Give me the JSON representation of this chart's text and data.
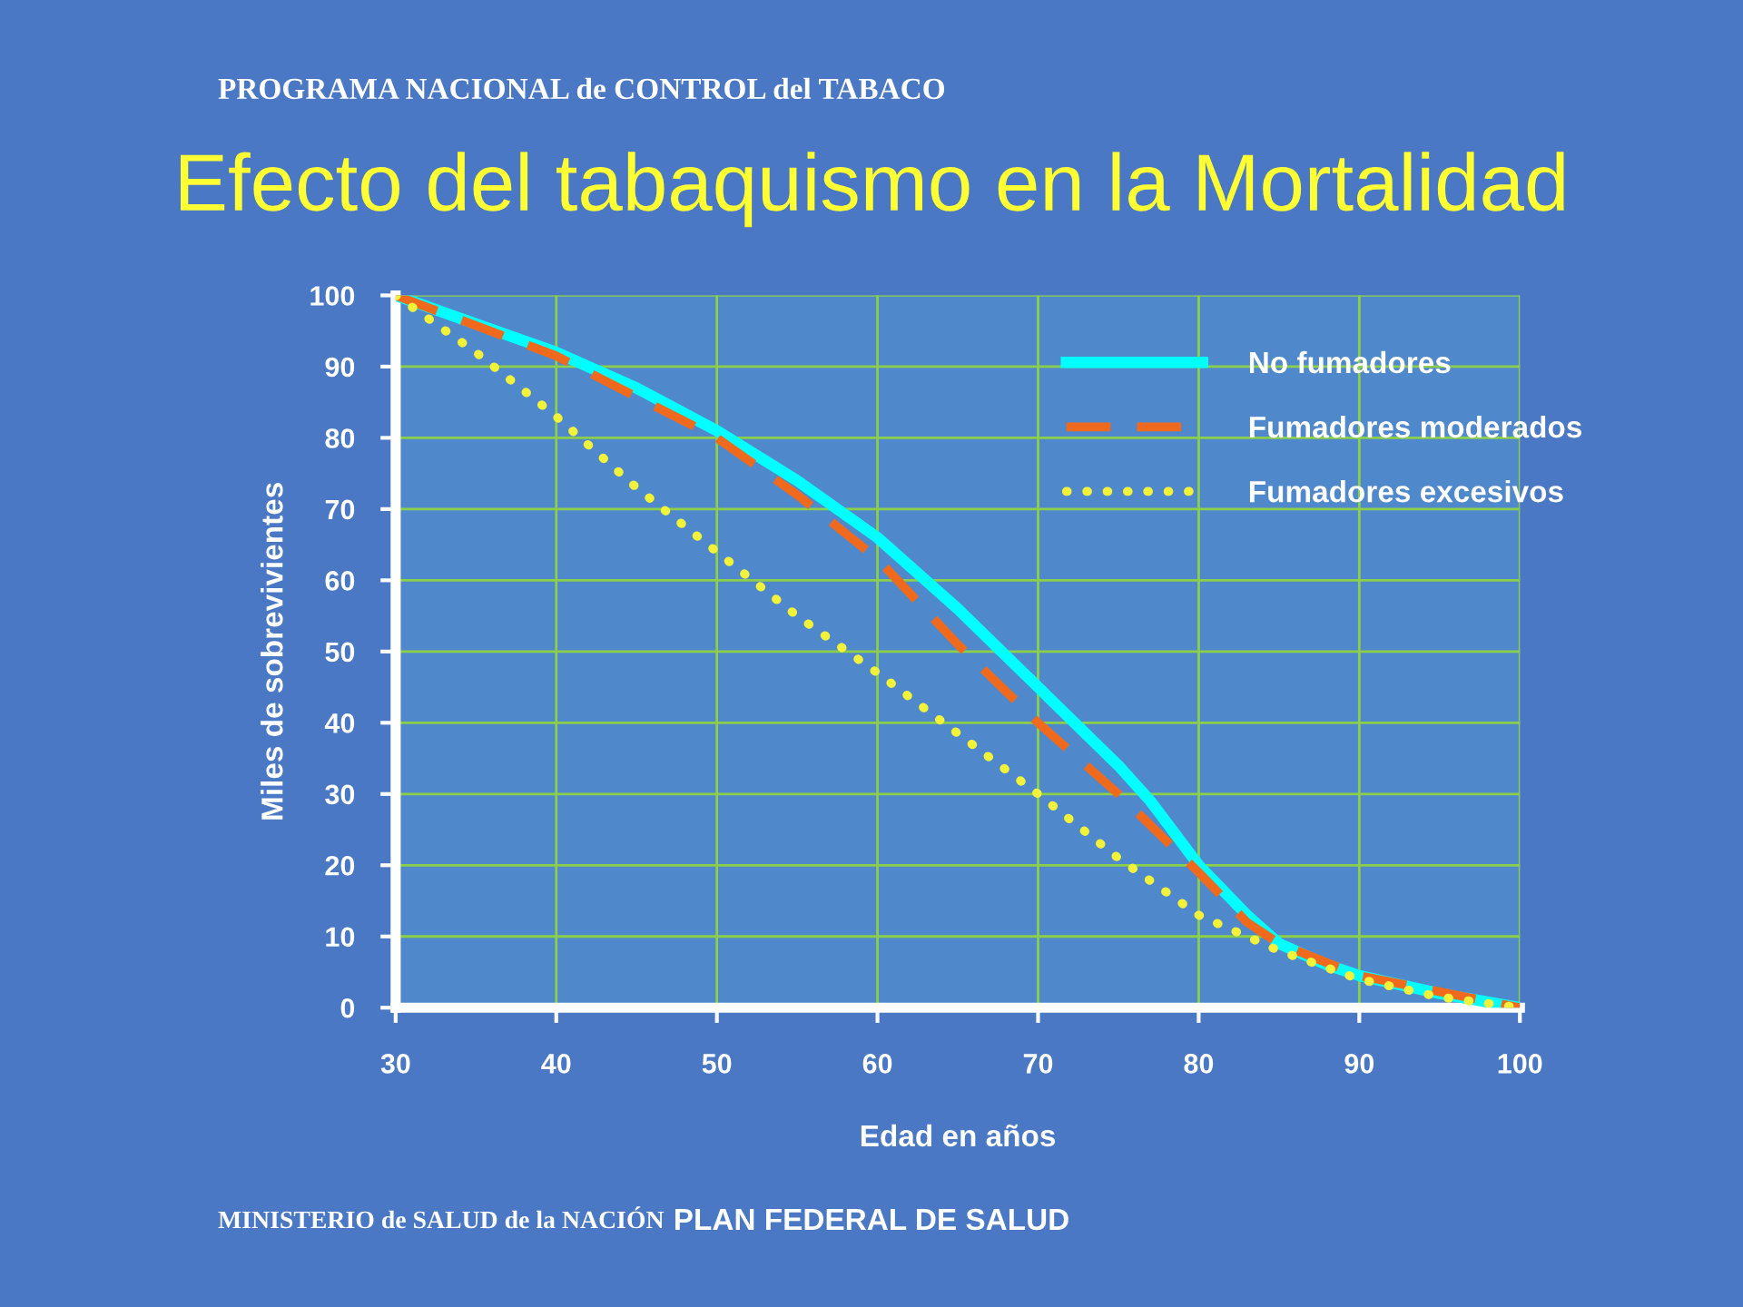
{
  "chart_data": {
    "type": "line",
    "title": "Efecto del tabaquismo en la Mortalidad",
    "xlabel": "Edad en años",
    "ylabel": "Miles de sobrevivientes",
    "annotations": [
      "PROGRAMA NACIONAL de CONTROL del TABACO",
      "MINISTERIO de SALUD de la NACIÓN",
      "PLAN FEDERAL DE SALUD"
    ],
    "series": [
      {
        "name": "No fumadores",
        "color": "#00ffff",
        "line_style": "solid",
        "x": [
          30,
          35,
          40,
          45,
          50,
          55,
          60,
          65,
          70,
          75,
          77,
          80,
          83,
          85,
          88,
          90,
          95,
          100
        ],
        "values": [
          100,
          96,
          92,
          87,
          81,
          74,
          66,
          56,
          45,
          34,
          29,
          20,
          13,
          9,
          6,
          4.5,
          2,
          0
        ]
      },
      {
        "name": "Fumadores moderados",
        "color": "#f06a1e",
        "line_style": "dashed",
        "x": [
          30,
          40,
          50,
          55,
          60,
          65,
          70,
          75,
          80,
          83,
          85,
          90,
          100
        ],
        "values": [
          100,
          91.5,
          80,
          72,
          63,
          51,
          40,
          30,
          19,
          12,
          9,
          4.5,
          0
        ]
      },
      {
        "name": "Fumadores excesivos",
        "color": "#f2f23a",
        "line_style": "dotted",
        "x": [
          30,
          35,
          40,
          45,
          50,
          55,
          60,
          65,
          70,
          75,
          80,
          85,
          90,
          95,
          100
        ],
        "values": [
          100,
          92,
          83,
          73,
          64,
          55,
          47,
          38.5,
          30,
          21,
          13,
          8,
          4,
          1.5,
          0
        ]
      }
    ],
    "xlim": [
      30,
      100
    ],
    "xticks": [
      30,
      40,
      50,
      60,
      70,
      80,
      90,
      100
    ],
    "ylim": [
      0,
      100
    ],
    "yticks": [
      0,
      10,
      20,
      30,
      40,
      50,
      60,
      70,
      80,
      90,
      100
    ],
    "grid": true,
    "legend": "top right"
  }
}
